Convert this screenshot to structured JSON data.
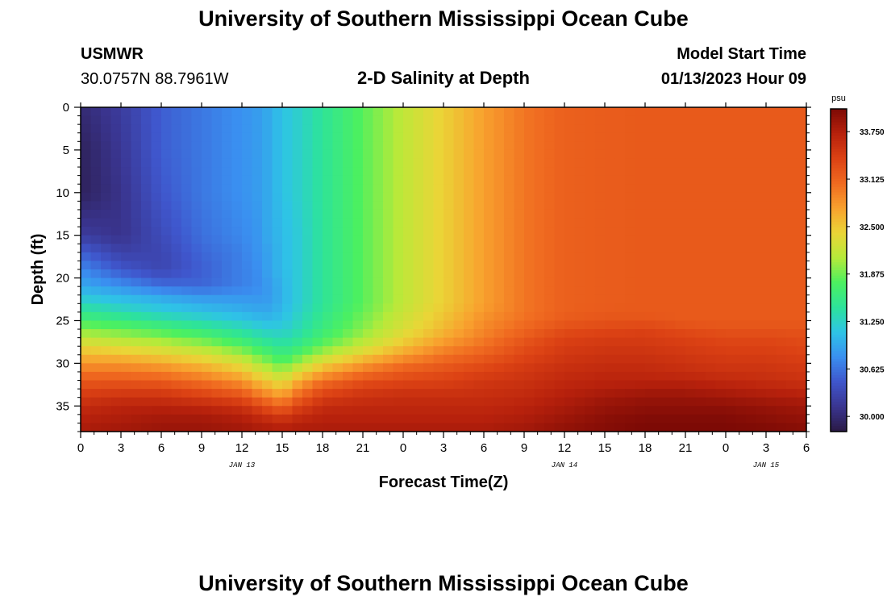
{
  "page": {
    "title": "University of Southern Mississippi Ocean Cube",
    "title_repeat": "University of Southern Mississippi Ocean Cube",
    "station_id": "USMWR",
    "station_coords": "30.0757N  88.7961W",
    "plot_title": "2-D Salinity at Depth",
    "model_start_label": "Model Start Time",
    "model_start_value": "01/13/2023 Hour 09"
  },
  "chart_data": {
    "type": "heatmap",
    "title": "2-D Salinity at Depth",
    "xlabel": "Forecast Time(Z)",
    "ylabel": "Depth (ft)",
    "x_ticks": [
      "0",
      "3",
      "6",
      "9",
      "12",
      "15",
      "18",
      "21",
      "0",
      "3",
      "6",
      "9",
      "12",
      "15",
      "18",
      "21",
      "0",
      "3",
      "6"
    ],
    "day_labels": [
      {
        "label": "JAN 13",
        "at_tick": 4
      },
      {
        "label": "JAN 14",
        "at_tick": 12
      },
      {
        "label": "JAN 15",
        "at_tick": 17
      }
    ],
    "y_ticks": [
      "0",
      "5",
      "10",
      "15",
      "20",
      "25",
      "30",
      "35"
    ],
    "xlim_hours": [
      0,
      54
    ],
    "ylim_ft": [
      38,
      0
    ],
    "y_reversed": true,
    "colorbar": {
      "unit": "psu",
      "ticks": [
        "30.000",
        "30.625",
        "31.250",
        "31.875",
        "32.500",
        "33.125",
        "33.750"
      ],
      "range": [
        29.8,
        34.05
      ],
      "colors": [
        "#2a1a45",
        "#3a3590",
        "#3f56cc",
        "#3a8ff0",
        "#2ec4e6",
        "#2de39b",
        "#4cf060",
        "#b6ea3a",
        "#ead537",
        "#f8a12e",
        "#f06a20",
        "#dc4214",
        "#b7210c",
        "#7d0a05"
      ]
    },
    "columns_hours": [
      0,
      3,
      6,
      9,
      12,
      13,
      14,
      15,
      16,
      18,
      21,
      24,
      27,
      30,
      33,
      36,
      39,
      42,
      45,
      48,
      51,
      54
    ],
    "rows_depth_ft": [
      0,
      5,
      10,
      15,
      17,
      19,
      21,
      22,
      23,
      24,
      25,
      26,
      27,
      28,
      29,
      30,
      31,
      32,
      33,
      34,
      35,
      36,
      37,
      38
    ],
    "salinity_psu": [
      [
        30.0,
        30.2,
        30.5,
        30.65,
        30.8,
        30.85,
        30.95,
        31.1,
        31.2,
        31.45,
        31.8,
        32.15,
        32.45,
        32.75,
        33.0,
        33.15,
        33.18,
        33.2,
        33.2,
        33.2,
        33.2,
        33.2
      ],
      [
        29.9,
        30.15,
        30.5,
        30.65,
        30.8,
        30.85,
        30.95,
        31.1,
        31.2,
        31.45,
        31.8,
        32.15,
        32.45,
        32.75,
        33.0,
        33.15,
        33.18,
        33.2,
        33.2,
        33.2,
        33.2,
        33.2
      ],
      [
        29.9,
        30.1,
        30.45,
        30.65,
        30.8,
        30.85,
        30.95,
        31.1,
        31.2,
        31.45,
        31.8,
        32.15,
        32.45,
        32.75,
        33.0,
        33.15,
        33.18,
        33.2,
        33.2,
        33.2,
        33.2,
        33.2
      ],
      [
        30.2,
        30.1,
        30.35,
        30.6,
        30.75,
        30.8,
        30.95,
        31.05,
        31.15,
        31.45,
        31.8,
        32.15,
        32.45,
        32.75,
        33.0,
        33.15,
        33.18,
        33.2,
        33.2,
        33.2,
        33.2,
        33.2
      ],
      [
        30.5,
        30.25,
        30.3,
        30.55,
        30.7,
        30.8,
        30.9,
        31.05,
        31.15,
        31.45,
        31.8,
        32.15,
        32.45,
        32.75,
        33.0,
        33.15,
        33.18,
        33.2,
        33.2,
        33.2,
        33.2,
        33.2
      ],
      [
        30.75,
        30.45,
        30.3,
        30.5,
        30.7,
        30.75,
        30.9,
        31.05,
        31.15,
        31.45,
        31.8,
        32.15,
        32.45,
        32.75,
        33.0,
        33.15,
        33.18,
        33.2,
        33.2,
        33.2,
        33.2,
        33.2
      ],
      [
        30.95,
        30.8,
        30.6,
        30.55,
        30.7,
        30.75,
        30.85,
        31.0,
        31.15,
        31.45,
        31.8,
        32.15,
        32.45,
        32.75,
        33.0,
        33.15,
        33.18,
        33.2,
        33.2,
        33.2,
        33.2,
        33.2
      ],
      [
        31.1,
        31.0,
        30.9,
        30.8,
        30.8,
        30.8,
        30.85,
        31.0,
        31.15,
        31.45,
        31.8,
        32.15,
        32.45,
        32.75,
        33.0,
        33.15,
        33.18,
        33.2,
        33.2,
        33.2,
        33.2,
        33.2
      ],
      [
        31.3,
        31.15,
        31.05,
        30.95,
        30.9,
        30.88,
        30.88,
        31.0,
        31.15,
        31.45,
        31.8,
        32.15,
        32.45,
        32.75,
        33.0,
        33.15,
        33.18,
        33.2,
        33.2,
        33.2,
        33.2,
        33.2
      ],
      [
        31.5,
        31.35,
        31.2,
        31.1,
        31.0,
        30.95,
        30.95,
        31.05,
        31.2,
        31.5,
        31.85,
        32.2,
        32.5,
        32.8,
        33.0,
        33.15,
        33.2,
        33.2,
        33.2,
        33.2,
        33.2,
        33.2
      ],
      [
        31.7,
        31.6,
        31.45,
        31.3,
        31.15,
        31.1,
        31.05,
        31.1,
        31.25,
        31.55,
        31.9,
        32.25,
        32.55,
        32.85,
        33.05,
        33.2,
        33.25,
        33.25,
        33.2,
        33.2,
        33.2,
        33.2
      ],
      [
        31.95,
        31.85,
        31.7,
        31.55,
        31.35,
        31.25,
        31.2,
        31.2,
        31.3,
        31.6,
        31.95,
        32.3,
        32.6,
        32.9,
        33.1,
        33.3,
        33.35,
        33.4,
        33.3,
        33.25,
        33.25,
        33.25
      ],
      [
        32.15,
        32.05,
        31.95,
        31.8,
        31.55,
        31.45,
        31.35,
        31.3,
        31.4,
        31.7,
        32.05,
        32.4,
        32.7,
        32.95,
        33.2,
        33.4,
        33.45,
        33.45,
        33.4,
        33.35,
        33.35,
        33.3
      ],
      [
        32.4,
        32.3,
        32.2,
        32.05,
        31.8,
        31.65,
        31.55,
        31.45,
        31.55,
        31.85,
        32.2,
        32.55,
        32.85,
        33.05,
        33.3,
        33.45,
        33.5,
        33.5,
        33.45,
        33.4,
        33.4,
        33.35
      ],
      [
        32.6,
        32.55,
        32.45,
        32.3,
        32.05,
        31.9,
        31.75,
        31.6,
        31.75,
        32.1,
        32.45,
        32.75,
        33.0,
        33.15,
        33.35,
        33.5,
        33.55,
        33.55,
        33.5,
        33.45,
        33.45,
        33.4
      ],
      [
        32.8,
        32.8,
        32.7,
        32.55,
        32.3,
        32.1,
        31.95,
        31.8,
        32.0,
        32.4,
        32.75,
        33.0,
        33.15,
        33.3,
        33.45,
        33.55,
        33.6,
        33.6,
        33.55,
        33.5,
        33.5,
        33.45
      ],
      [
        33.0,
        33.0,
        32.95,
        32.8,
        32.55,
        32.35,
        32.2,
        32.05,
        32.3,
        32.7,
        33.0,
        33.2,
        33.3,
        33.4,
        33.5,
        33.6,
        33.65,
        33.65,
        33.6,
        33.55,
        33.55,
        33.5
      ],
      [
        33.2,
        33.2,
        33.15,
        33.0,
        32.8,
        32.6,
        32.45,
        32.3,
        32.6,
        33.0,
        33.25,
        33.35,
        33.4,
        33.5,
        33.55,
        33.65,
        33.7,
        33.7,
        33.7,
        33.65,
        33.6,
        33.55
      ],
      [
        33.35,
        33.4,
        33.4,
        33.25,
        33.05,
        32.85,
        32.7,
        32.55,
        32.85,
        33.25,
        33.45,
        33.5,
        33.5,
        33.55,
        33.6,
        33.7,
        33.75,
        33.8,
        33.8,
        33.75,
        33.7,
        33.65
      ],
      [
        33.5,
        33.55,
        33.55,
        33.45,
        33.3,
        33.1,
        32.95,
        32.8,
        33.1,
        33.45,
        33.55,
        33.6,
        33.6,
        33.6,
        33.65,
        33.75,
        33.85,
        33.9,
        33.9,
        33.85,
        33.8,
        33.75
      ],
      [
        33.6,
        33.7,
        33.7,
        33.65,
        33.55,
        33.4,
        33.25,
        33.1,
        33.35,
        33.6,
        33.65,
        33.65,
        33.65,
        33.65,
        33.7,
        33.8,
        33.9,
        33.95,
        33.95,
        33.95,
        33.9,
        33.85
      ],
      [
        33.7,
        33.75,
        33.8,
        33.8,
        33.7,
        33.6,
        33.5,
        33.4,
        33.55,
        33.7,
        33.7,
        33.7,
        33.7,
        33.7,
        33.75,
        33.85,
        33.95,
        34.0,
        34.0,
        34.0,
        33.95,
        33.9
      ],
      [
        33.75,
        33.8,
        33.85,
        33.85,
        33.8,
        33.75,
        33.7,
        33.65,
        33.7,
        33.75,
        33.75,
        33.75,
        33.75,
        33.75,
        33.8,
        33.9,
        34.0,
        34.05,
        34.05,
        34.05,
        34.0,
        33.95
      ],
      [
        33.8,
        33.85,
        33.9,
        33.9,
        33.85,
        33.8,
        33.8,
        33.75,
        33.8,
        33.8,
        33.8,
        33.8,
        33.8,
        33.8,
        33.85,
        33.95,
        34.0,
        34.05,
        34.05,
        34.05,
        34.05,
        34.0
      ]
    ]
  }
}
